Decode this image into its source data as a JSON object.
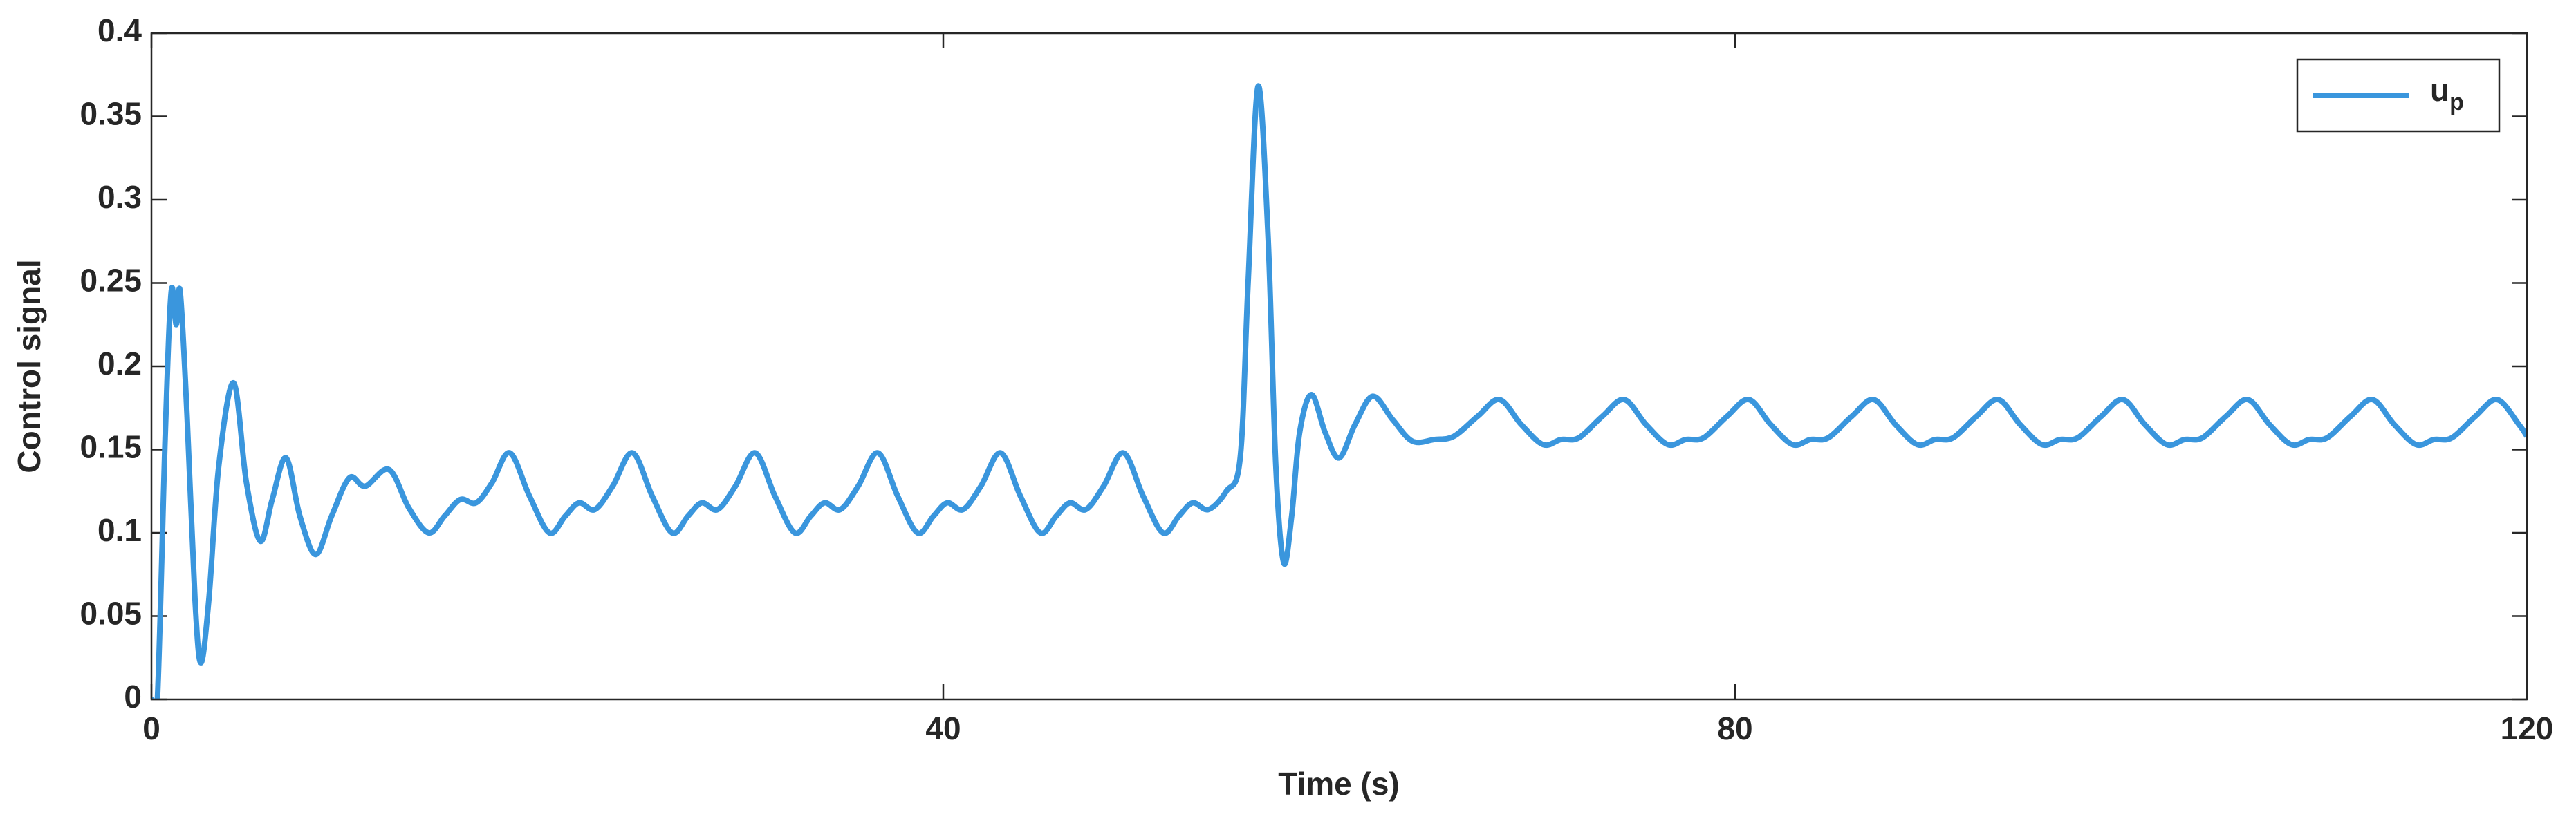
{
  "chart_data": {
    "type": "line",
    "xlabel": "Time (s)",
    "ylabel": "Control signal",
    "xlim": [
      0,
      120
    ],
    "xticks": [
      0,
      40,
      80,
      120
    ],
    "ylim": [
      0,
      0.4
    ],
    "yticks": [
      0,
      0.05,
      0.1,
      0.15,
      0.2,
      0.25,
      0.3,
      0.35,
      0.4
    ],
    "grid": false,
    "legend": "upper right",
    "series": [
      {
        "name": "u",
        "name_subscript": "p",
        "color": "#3a96dd",
        "x": [
          0,
          0.3,
          0.7,
          1.0,
          1.25,
          1.45,
          1.8,
          2.2,
          2.5,
          2.9,
          3.4,
          4.15,
          4.8,
          5.5,
          6.1,
          6.8,
          7.5,
          8.3,
          9.1,
          10,
          10.8,
          12,
          13,
          14,
          14.8,
          15.6,
          16.4,
          17.2,
          18.1,
          19.1,
          20.1,
          20.9,
          21.6,
          22.4,
          23.3,
          24.3,
          25.3,
          26.3,
          27.1,
          27.8,
          28.6,
          29.5,
          30.5,
          31.5,
          32.5,
          33.3,
          34.0,
          34.8,
          35.7,
          36.7,
          37.7,
          38.7,
          39.5,
          40.2,
          41.0,
          41.9,
          42.9,
          43.9,
          44.9,
          45.7,
          46.4,
          47.2,
          48.1,
          49.1,
          50.1,
          51.1,
          51.9,
          52.6,
          53.4,
          54.3,
          55.0,
          55.4,
          55.9,
          56.4,
          56.8,
          57.2,
          57.6,
          58.0,
          58.6,
          59.3,
          60.0,
          60.8,
          61.7,
          62.7,
          63.7,
          64.8,
          65.8,
          67,
          68.1,
          69.2,
          70.3,
          71.2,
          72.1,
          73.3,
          74.4,
          75.5,
          76.6,
          77.5,
          78.4,
          79.6,
          80.7,
          81.8,
          82.9,
          83.8,
          84.7,
          85.9,
          87.0,
          88.1,
          89.2,
          90.1,
          91.0,
          92.2,
          93.3,
          94.4,
          95.5,
          96.4,
          97.3,
          98.5,
          99.6,
          100.7,
          101.8,
          102.7,
          103.6,
          104.8,
          105.9,
          107.0,
          108.1,
          109.0,
          109.9,
          111.1,
          112.2,
          113.3,
          114.4,
          115.3,
          116.2,
          117.4,
          118.5,
          119.6,
          120
        ],
        "values": [
          0,
          0,
          0.16,
          0.245,
          0.225,
          0.245,
          0.17,
          0.06,
          0.022,
          0.06,
          0.14,
          0.19,
          0.13,
          0.095,
          0.12,
          0.145,
          0.11,
          0.087,
          0.11,
          0.133,
          0.128,
          0.138,
          0.115,
          0.1,
          0.11,
          0.12,
          0.118,
          0.13,
          0.148,
          0.122,
          0.1,
          0.11,
          0.118,
          0.114,
          0.128,
          0.148,
          0.122,
          0.1,
          0.11,
          0.118,
          0.114,
          0.128,
          0.148,
          0.122,
          0.1,
          0.11,
          0.118,
          0.114,
          0.128,
          0.148,
          0.122,
          0.1,
          0.11,
          0.118,
          0.114,
          0.128,
          0.148,
          0.122,
          0.1,
          0.11,
          0.118,
          0.114,
          0.128,
          0.148,
          0.122,
          0.1,
          0.11,
          0.118,
          0.114,
          0.125,
          0.145,
          0.25,
          0.368,
          0.28,
          0.14,
          0.082,
          0.11,
          0.16,
          0.183,
          0.16,
          0.145,
          0.165,
          0.182,
          0.168,
          0.155,
          0.156,
          0.158,
          0.17,
          0.18,
          0.165,
          0.153,
          0.156,
          0.157,
          0.17,
          0.18,
          0.165,
          0.153,
          0.156,
          0.157,
          0.17,
          0.18,
          0.165,
          0.153,
          0.156,
          0.157,
          0.17,
          0.18,
          0.165,
          0.153,
          0.156,
          0.157,
          0.17,
          0.18,
          0.165,
          0.153,
          0.156,
          0.157,
          0.17,
          0.18,
          0.165,
          0.153,
          0.156,
          0.157,
          0.17,
          0.18,
          0.165,
          0.153,
          0.156,
          0.157,
          0.17,
          0.18,
          0.165,
          0.153,
          0.156,
          0.157,
          0.17,
          0.18,
          0.165,
          0.158
        ]
      }
    ]
  }
}
